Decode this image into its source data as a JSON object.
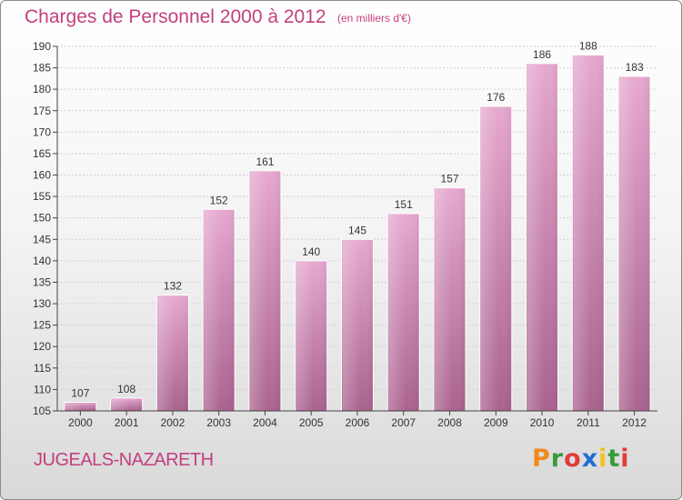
{
  "header": {
    "title": "Charges de Personnel 2000 à 2012",
    "subtitle": "(en milliers d'€)"
  },
  "footer": {
    "commune": "JUGEALS-NAZARETH",
    "logo": "Proxiti"
  },
  "colors": {
    "title": "#c2407e",
    "bar_top": "#e6a8cf",
    "bar_bottom": "#a9638f",
    "grid": "#cfcfcf"
  },
  "chart_data": {
    "type": "bar",
    "categories": [
      "2000",
      "2001",
      "2002",
      "2003",
      "2004",
      "2005",
      "2006",
      "2007",
      "2008",
      "2009",
      "2010",
      "2011",
      "2012"
    ],
    "values": [
      107,
      108,
      132,
      152,
      161,
      140,
      145,
      151,
      157,
      176,
      186,
      188,
      183
    ],
    "title": "Charges de Personnel 2000 à 2012",
    "subtitle": "(en milliers d'€)",
    "xlabel": "",
    "ylabel": "",
    "ylim": [
      105,
      190
    ],
    "yticks": [
      105,
      110,
      115,
      120,
      125,
      130,
      135,
      140,
      145,
      150,
      155,
      160,
      165,
      170,
      175,
      180,
      185,
      190
    ],
    "grid": true,
    "data_labels": true
  }
}
